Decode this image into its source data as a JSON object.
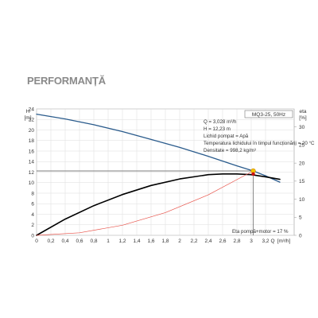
{
  "section_title": "PERFORMANȚĂ",
  "chart_data": {
    "type": "line",
    "model": "MQ3-25, 50Hz",
    "y_left_label": "H",
    "y_left_unit": "[m]",
    "y_right_label": "eta",
    "y_right_unit": "[%]",
    "x_label": "Q",
    "x_unit": "[m³/h]",
    "xlim": [
      0,
      3.6
    ],
    "ylim_left": [
      0,
      24
    ],
    "ylim_right": [
      0,
      35
    ],
    "x_ticks": [
      "0",
      "0,2",
      "0,4",
      "0,6",
      "0,8",
      "1",
      "1,2",
      "1,4",
      "1,6",
      "1,8",
      "2",
      "2,2",
      "2,4",
      "2,6",
      "2,8",
      "3",
      "3,2"
    ],
    "y_left_ticks": [
      "0",
      "2",
      "4",
      "6",
      "8",
      "10",
      "12",
      "14",
      "16",
      "18",
      "20",
      "22",
      "24"
    ],
    "y_right_ticks": [
      "0",
      "5",
      "10",
      "15",
      "20",
      "25",
      "30"
    ],
    "grid": true,
    "series": [
      {
        "id": "head",
        "axis": "left",
        "color": "#2a5b8c",
        "x": [
          0,
          0.4,
          0.8,
          1.2,
          1.6,
          2.0,
          2.4,
          2.8,
          3.028,
          3.2,
          3.4
        ],
        "y": [
          23.0,
          22.1,
          21.0,
          19.7,
          18.2,
          16.7,
          15.0,
          13.2,
          12.23,
          11.3,
          10.1
        ]
      },
      {
        "id": "efficiency",
        "axis": "right",
        "color": "#000000",
        "x": [
          0,
          0.4,
          0.8,
          1.2,
          1.6,
          2.0,
          2.4,
          2.6,
          2.8,
          3.0,
          3.2,
          3.4
        ],
        "y": [
          0,
          4.5,
          8.2,
          11.3,
          13.8,
          15.6,
          16.8,
          17.0,
          17.0,
          16.8,
          16.2,
          15.5
        ]
      },
      {
        "id": "system-curve",
        "axis": "left",
        "color": "#e8534a",
        "x": [
          0,
          0.6,
          1.2,
          1.8,
          2.4,
          3.028
        ],
        "y": [
          0,
          0.48,
          1.92,
          4.32,
          7.68,
          12.23
        ]
      }
    ],
    "operating_point": {
      "q": 3.028,
      "h": 12.23,
      "eta": 17,
      "lines": [
        "Q = 3,028  m³/h",
        "H = 12,23  m",
        "Lichid pompat = Apă",
        "Temperatura lichidului în timpul funcționării = 20  °C",
        "Densitate = 998,2  kg/m³"
      ]
    },
    "eta_label": "Eta pompă+motor = 17 %"
  }
}
